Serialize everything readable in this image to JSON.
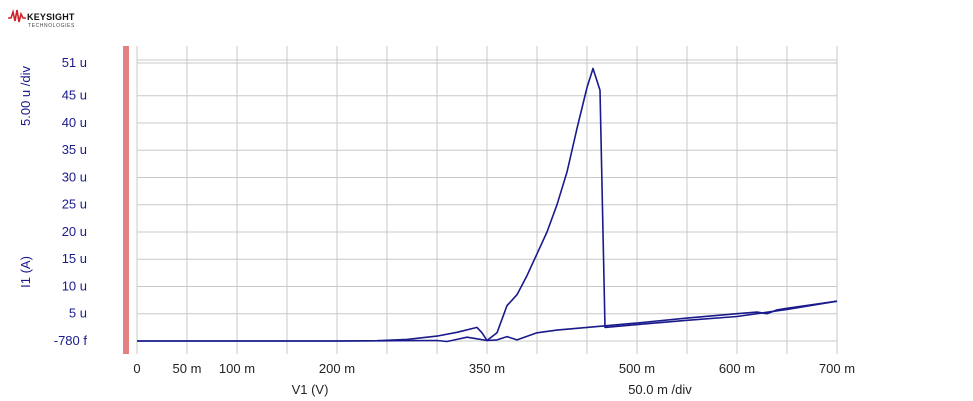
{
  "brand": {
    "name": "KEYSIGHT",
    "sub": "TECHNOLOGIES",
    "logo_color": "#d0202a"
  },
  "colors": {
    "trace": "#1a1a8c",
    "grid": "#c8c8c8",
    "axis_bar": "#e48080",
    "ylabel": "#1a1a8c"
  },
  "chart_data": {
    "type": "line",
    "xlabel": "V1 (V)",
    "ylabel": "I1 (A)",
    "y_scale_label": "5.00 u /div",
    "x_scale_label": "50.0 m /div",
    "xlim": [
      0,
      0.7
    ],
    "ylim": [
      -7.8e-13,
      5.1e-05
    ],
    "grid": true,
    "x_ticks": [
      {
        "v": 0,
        "t": "0"
      },
      {
        "v": 0.05,
        "t": "50 m"
      },
      {
        "v": 0.1,
        "t": "100 m"
      },
      {
        "v": 0.2,
        "t": "200 m"
      },
      {
        "v": 0.35,
        "t": "350 m"
      },
      {
        "v": 0.5,
        "t": "500 m"
      },
      {
        "v": 0.6,
        "t": "600 m"
      },
      {
        "v": 0.7,
        "t": "700 m"
      }
    ],
    "y_ticks": [
      {
        "v": 5.1e-05,
        "t": "51 u"
      },
      {
        "v": 4.5e-05,
        "t": "45 u"
      },
      {
        "v": 4e-05,
        "t": "40 u"
      },
      {
        "v": 3.5e-05,
        "t": "35 u"
      },
      {
        "v": 3e-05,
        "t": "30 u"
      },
      {
        "v": 2.5e-05,
        "t": "25 u"
      },
      {
        "v": 2e-05,
        "t": "20 u"
      },
      {
        "v": 1.5e-05,
        "t": "15 u"
      },
      {
        "v": 1e-05,
        "t": "10 u"
      },
      {
        "v": 5e-06,
        "t": "5 u"
      },
      {
        "v": -7.8e-13,
        "t": "-780 f"
      }
    ],
    "series": [
      {
        "x": [
          0,
          0.05,
          0.1,
          0.15,
          0.2,
          0.24,
          0.27,
          0.3,
          0.32,
          0.34,
          0.345,
          0.35,
          0.36,
          0.37,
          0.38,
          0.39,
          0.4,
          0.41,
          0.42,
          0.43,
          0.44,
          0.45,
          0.456,
          0.463,
          0.468,
          0.5,
          0.55,
          0.6,
          0.65,
          0.7
        ],
        "y": [
          0,
          0,
          0,
          0,
          0,
          5e-08,
          3e-07,
          9e-07,
          1.6e-06,
          2.5e-06,
          1.5e-06,
          1e-07,
          1.5e-06,
          6.5e-06,
          8.5e-06,
          1.2e-05,
          1.6e-05,
          2e-05,
          2.5e-05,
          3.1e-05,
          3.9e-05,
          4.65e-05,
          5e-05,
          4.6e-05,
          2.5e-06,
          3e-06,
          3.8e-06,
          4.5e-06,
          5.8e-06,
          7.3e-06
        ]
      },
      {
        "x": [
          0,
          0.1,
          0.2,
          0.26,
          0.3,
          0.31,
          0.32,
          0.33,
          0.34,
          0.35,
          0.36,
          0.37,
          0.38,
          0.4,
          0.42,
          0.45,
          0.5,
          0.55,
          0.6,
          0.62,
          0.63,
          0.64,
          0.65,
          0.7
        ],
        "y": [
          0,
          0,
          0,
          5e-08,
          1e-07,
          -1e-07,
          3e-07,
          7e-07,
          4e-07,
          1e-07,
          2e-07,
          8e-07,
          2e-07,
          1.5e-06,
          2e-06,
          2.5e-06,
          3.3e-06,
          4.2e-06,
          5e-06,
          5.3e-06,
          5e-06,
          5.7e-06,
          6e-06,
          7.3e-06
        ]
      }
    ]
  }
}
